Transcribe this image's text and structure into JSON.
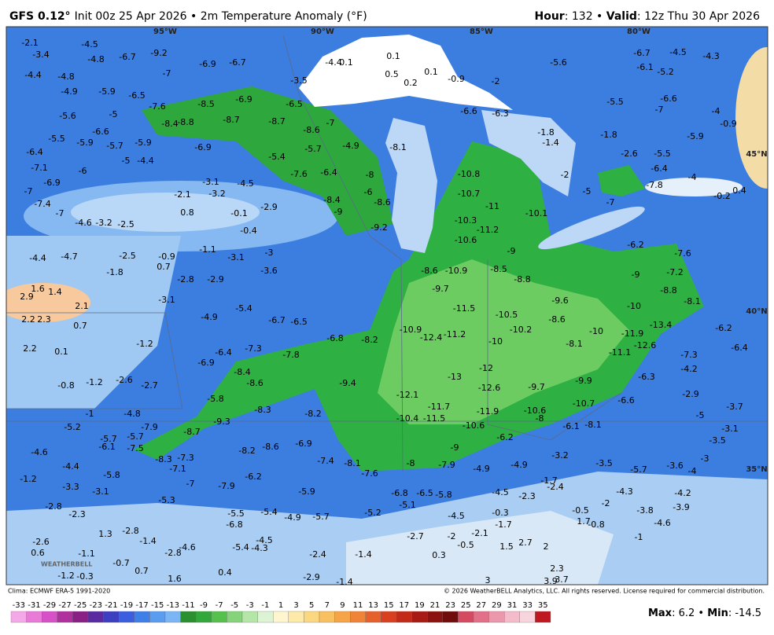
{
  "header": {
    "model": "GFS 0.12°",
    "run": "Init 00z 25 Apr 2026 • 2m Temperature Anomaly (°F)",
    "valid": [
      "Hour",
      ": 132 • ",
      "Valid",
      ": 12z Thu 30 Apr 2026"
    ]
  },
  "map": {
    "logo": "WEATHERBELL",
    "grid_labels": [
      "95°W",
      "90°W",
      "85°W",
      "80°W",
      "45°N",
      "40°N",
      "35°N"
    ],
    "anomalies": [
      -2.1,
      -3.4,
      -4.4,
      -4.8,
      -4.9,
      -5.6,
      -5.5,
      -6.4,
      -7.1,
      -6.9,
      -7.0,
      -7.4,
      -7.0,
      -6.0,
      -5.9,
      -6.6,
      -5.7,
      -5.0,
      -4.4,
      -5.9,
      -5.0,
      -5.9,
      -6.5,
      -4.5,
      -4.8,
      -6.7,
      -9.2,
      -7.0,
      -6.9,
      -6.7,
      -7.6,
      -8.5,
      -8.4,
      -8.8,
      -6.9,
      -8.7,
      -6.9,
      -8.7,
      -8.6,
      -7.0,
      -6.5,
      -3.5,
      -4.4,
      -5.4,
      -5.7,
      -4.9,
      -3.1,
      -4.5,
      -3.2,
      -2.1,
      0.8,
      -0.1,
      -2.9,
      -0.4,
      -7.6,
      -6.4,
      -8.4,
      -9.0,
      -8.0,
      -6.0,
      -8.6,
      -9.2,
      -8.1,
      -4.4,
      -4.7,
      -1.8,
      -4.6,
      -3.2,
      -2.5,
      -2.5,
      -0.9,
      0.7,
      -1.1,
      -3.1,
      -3.0,
      -3.6,
      -2.8,
      -2.9,
      1.6,
      1.4,
      2.9,
      2.1,
      2.2,
      2.3,
      0.7,
      2.2,
      0.1,
      -1.2,
      -1.2,
      -0.8,
      -2.6,
      -2.7,
      -3.1,
      -4.9,
      -5.4,
      -6.9,
      -6.4,
      -7.3,
      -8.4,
      -8.6,
      -7.8,
      -5.8,
      -8.3,
      -8.2,
      -6.8,
      -8.2,
      -9.4,
      -6.7,
      -6.5,
      -8.6,
      -10.9,
      -9.7,
      -11.5,
      -10.9,
      -12.4,
      -11.2,
      -10.5,
      -10.2,
      -10.0,
      -12.0,
      -12.6,
      -13.0,
      -12.1,
      -11.7,
      -11.9,
      -10.6,
      -11.5,
      -10.4,
      -10.6,
      -8.0,
      -9.7,
      -10.7,
      -11.0,
      -10.3,
      -11.2,
      -10.6,
      -10.8,
      -10.1,
      -9.0,
      -8.5,
      -8.8,
      -9.6,
      -8.6,
      -10.0,
      -11.9,
      -12.6,
      -11.1,
      -8.1,
      -10.0,
      -13.4,
      -9.0,
      -7.2,
      -8.8,
      -8.1,
      -7.6,
      -6.2,
      -9.9,
      -10.7,
      -6.6,
      -6.3,
      -2.9,
      -5.0,
      -3.7,
      -4.2,
      -7.3,
      -6.4,
      -6.2,
      -5.6,
      -6.7,
      -4.5,
      -4.3,
      -6.1,
      -5.2,
      -5.5,
      -6.6,
      -7.0,
      -4.0,
      -0.9,
      -5.9,
      -5.5,
      -6.4,
      -4.0,
      -7.8,
      -7.0,
      -5.0,
      -2.0,
      -2.6,
      -1.8,
      -1.8,
      -1.4,
      0.1,
      0.1,
      0.1,
      0.5,
      0.2,
      -0.9,
      -2.0,
      -6.6,
      -6.3,
      -0.2,
      0.4,
      -6.8,
      -6.5,
      -5.8,
      -5.1,
      -5.2,
      -4.5,
      -4.5,
      -2.3,
      -0.3,
      -1.7,
      -2.7,
      -2.0,
      -2.1,
      -0.5,
      1.5,
      2.7,
      2.0,
      2.3,
      3.0,
      3.9,
      3.7,
      0.3,
      -1.4,
      -1.4,
      -2.9,
      -2.4,
      0.4,
      1.6,
      0.7,
      -0.7,
      -1.1,
      -2.6,
      0.6,
      -0.3,
      -1.2,
      1.3,
      -2.8,
      -1.4,
      -2.8,
      -4.6,
      -5.4,
      -4.3,
      -4.5,
      -6.8,
      -5.5,
      -5.4,
      -4.9,
      -5.7,
      -5.9,
      -7.0,
      -7.9,
      -6.2,
      -8.3,
      -7.3,
      -7.1,
      -5.8,
      -4.4,
      -4.6,
      -5.2,
      -5.7,
      -6.1,
      -7.5,
      -5.7,
      -7.9,
      -4.8,
      -1.0,
      -1.2,
      -3.3,
      -3.1,
      -2.8,
      -2.3,
      -5.3,
      -8.7,
      -9.3,
      -8.2,
      -8.6,
      -6.9,
      -7.4,
      -8.1,
      -7.6,
      -8.0,
      -7.9,
      -9.0,
      -6.2,
      -4.9,
      -4.9,
      -3.2,
      -1.7,
      -2.4,
      -6.1,
      -8.1,
      -3.5,
      -5.7,
      -3.6,
      -4.0,
      -3.0,
      -3.5,
      -3.1,
      -4.3,
      -2.0,
      -0.5,
      -0.8,
      -3.8,
      -4.2,
      -3.9,
      -4.6,
      -1.0,
      1.7
    ]
  },
  "colorbar": {
    "ticks": [
      -33,
      -31,
      -29,
      -27,
      -25,
      -23,
      -21,
      -19,
      -17,
      -15,
      -13,
      -11,
      -9,
      -7,
      -5,
      -3,
      -1,
      1,
      3,
      5,
      7,
      9,
      11,
      13,
      15,
      17,
      19,
      21,
      23,
      25,
      27,
      29,
      31,
      33,
      35
    ]
  },
  "footer": {
    "clima": "Clima: ECMWF ERA-5 1991-2020",
    "copyright": "© 2026 WeatherBELL Analytics, LLC. All rights reserved. License required for commercial distribution.",
    "stats": [
      "Max",
      ": 6.2 • ",
      "Min",
      ": -14.5"
    ]
  }
}
